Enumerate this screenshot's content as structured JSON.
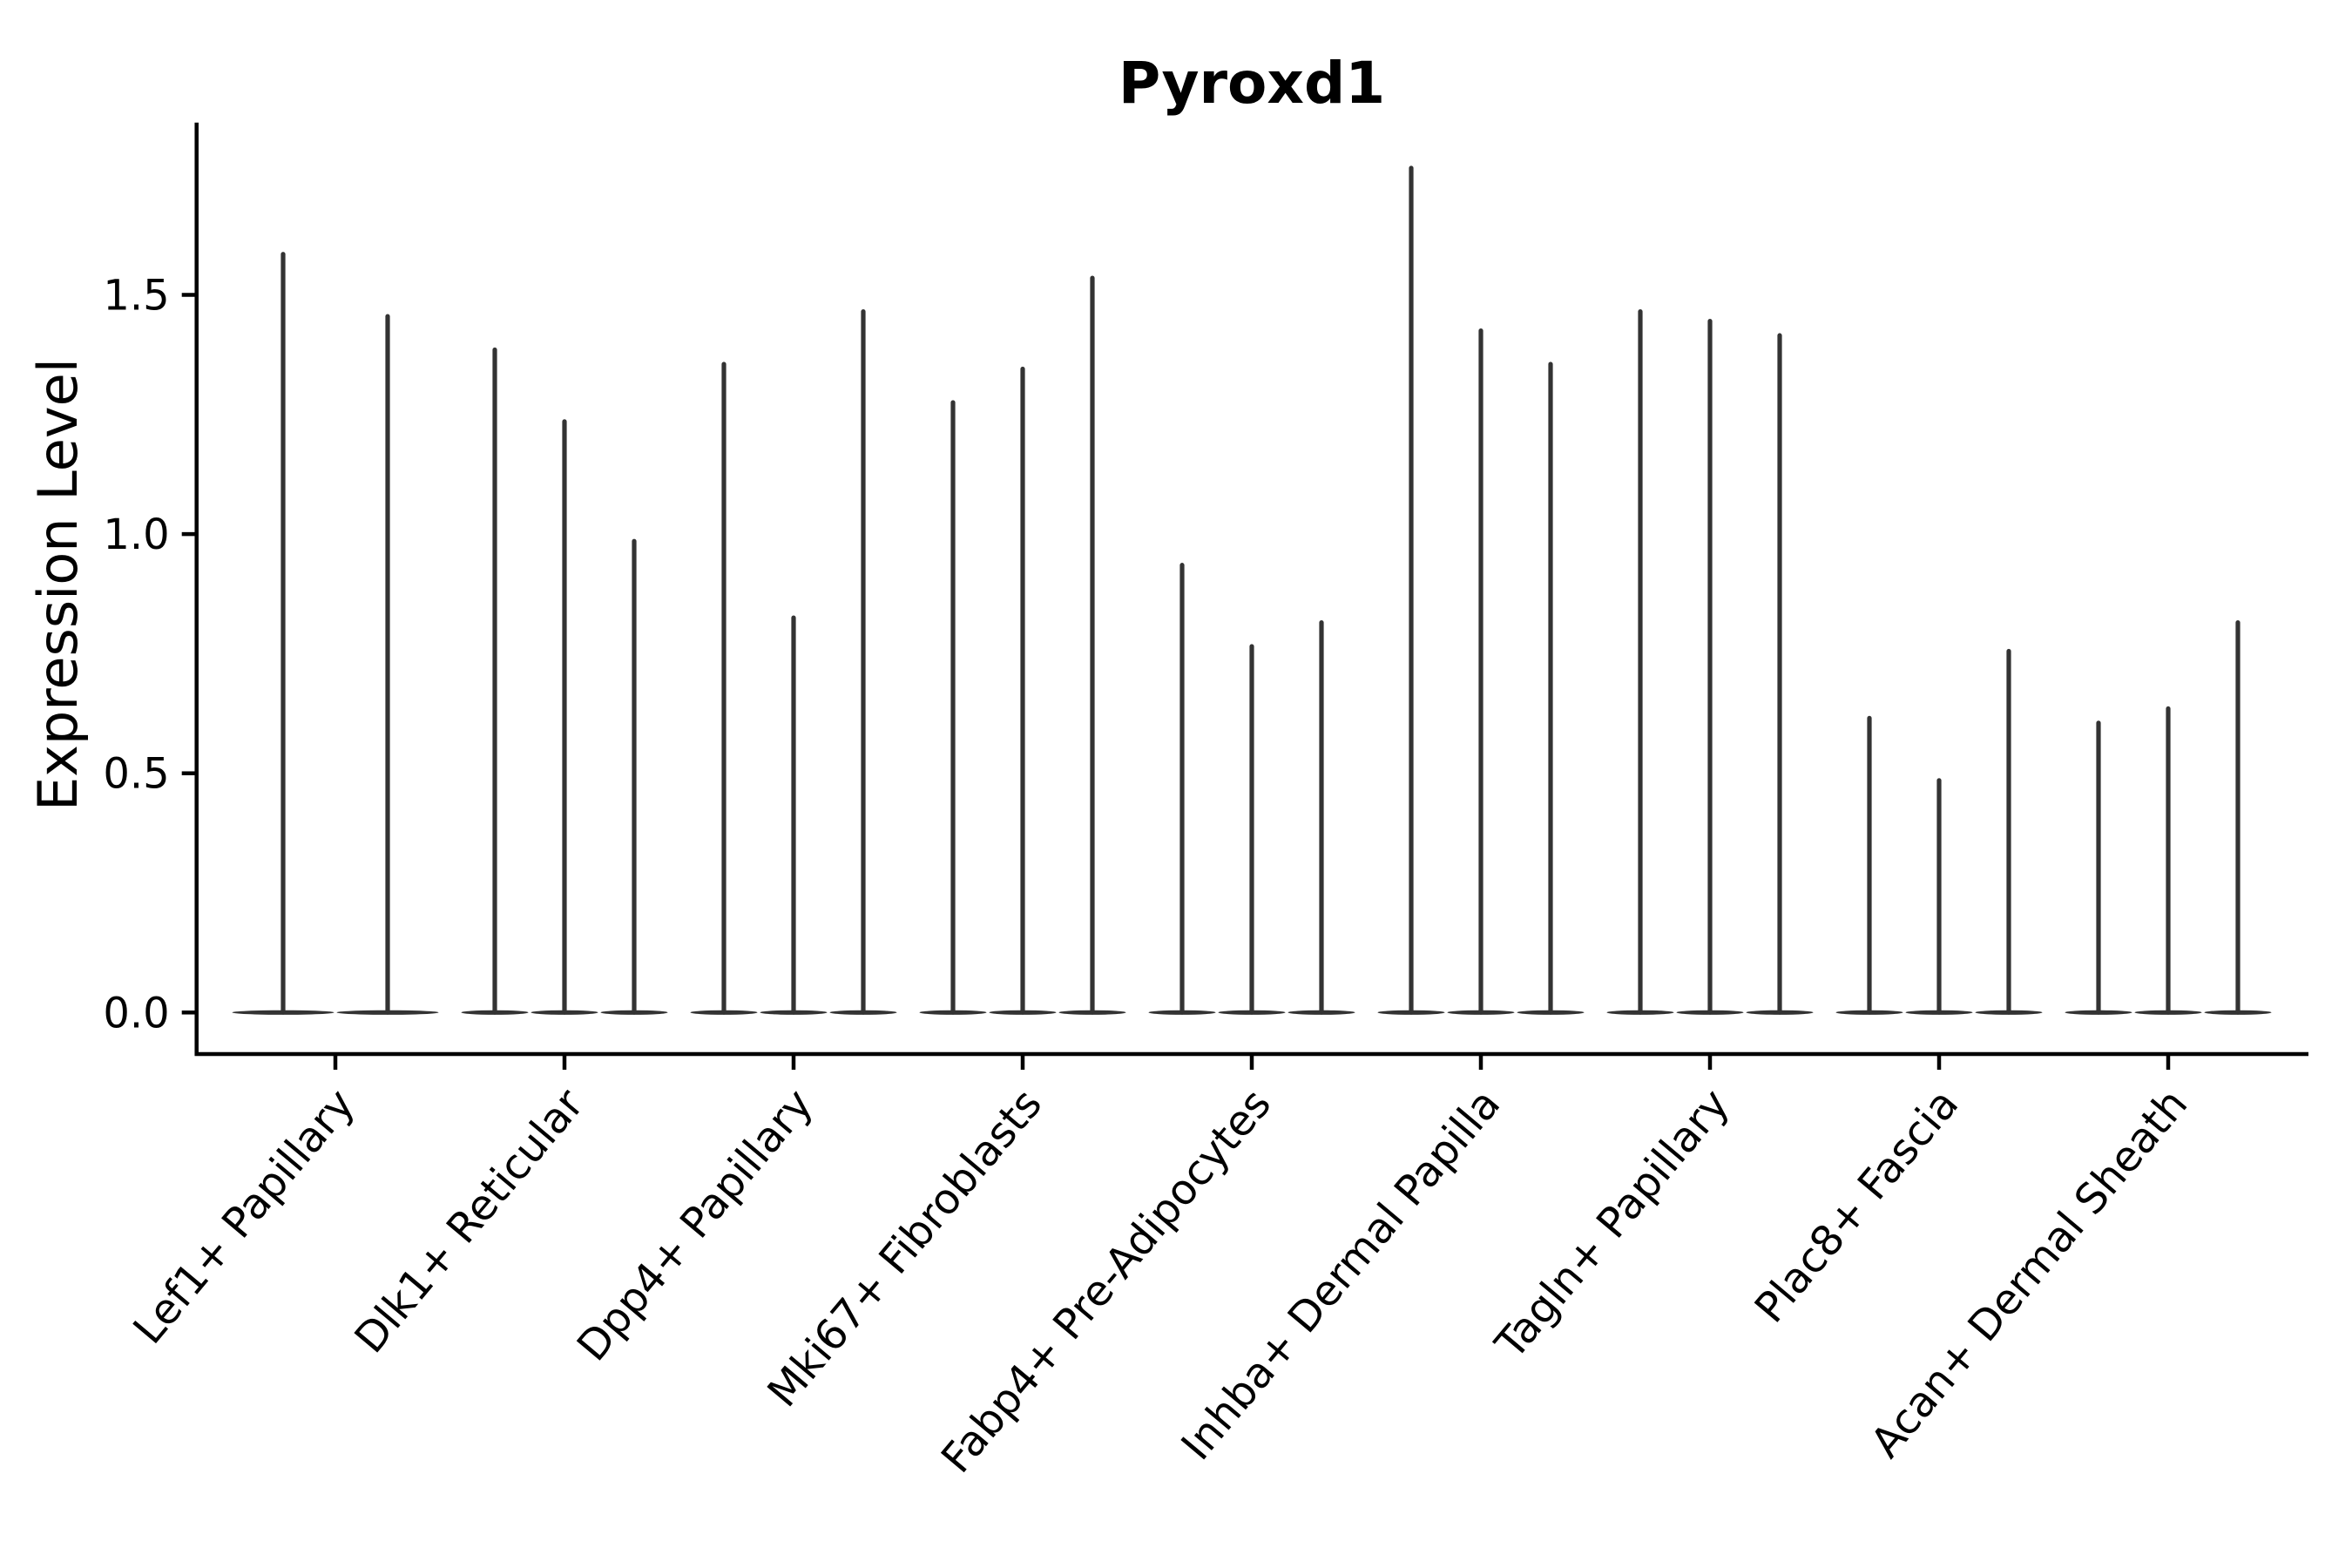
{
  "chart_data": {
    "type": "violin",
    "title": "Pyroxd1",
    "xlabel": "",
    "ylabel": "Expression Level",
    "ylim": [
      -0.09,
      1.86
    ],
    "yticks": [
      0.0,
      0.5,
      1.0,
      1.5
    ],
    "ytick_labels": [
      "0.0",
      "0.5",
      "1.0",
      "1.5"
    ],
    "grid": false,
    "legend": false,
    "categories": [
      "Lef1+ Papillary",
      "Dlk1+ Reticular",
      "Dpp4+ Papillary",
      "Mki67+ Fibroblasts",
      "Fabp4+ Pre-Adipocytes",
      "Inhba+ Dermal Papilla",
      "Tagln+ Papillary",
      "Plac8+ Fascia",
      "Acan+ Dermal Sheath"
    ],
    "groups": [
      {
        "label": "Lef1+ Papillary",
        "violin_max_values": [
          1.59,
          1.46
        ]
      },
      {
        "label": "Dlk1+ Reticular",
        "violin_max_values": [
          1.39,
          1.24,
          0.99
        ]
      },
      {
        "label": "Dpp4+ Papillary",
        "violin_max_values": [
          1.36,
          0.83,
          1.47
        ]
      },
      {
        "label": "Mki67+ Fibroblasts",
        "violin_max_values": [
          1.28,
          1.35,
          1.54
        ]
      },
      {
        "label": "Fabp4+ Pre-Adipocytes",
        "violin_max_values": [
          0.94,
          0.77,
          0.82
        ]
      },
      {
        "label": "Inhba+ Dermal Papilla",
        "violin_max_values": [
          1.77,
          1.43,
          1.36
        ]
      },
      {
        "label": "Tagln+ Papillary",
        "violin_max_values": [
          1.47,
          1.45,
          1.42
        ]
      },
      {
        "label": "Plac8+ Fascia",
        "violin_max_values": [
          0.62,
          0.49,
          0.76
        ]
      },
      {
        "label": "Acan+ Dermal Sheath",
        "violin_max_values": [
          0.61,
          0.64,
          0.82
        ]
      }
    ],
    "violin_baseline_value": 0.0,
    "colors": {
      "violin": "#333333",
      "spine": "#000000",
      "text": "#000000",
      "background": "#ffffff"
    }
  }
}
